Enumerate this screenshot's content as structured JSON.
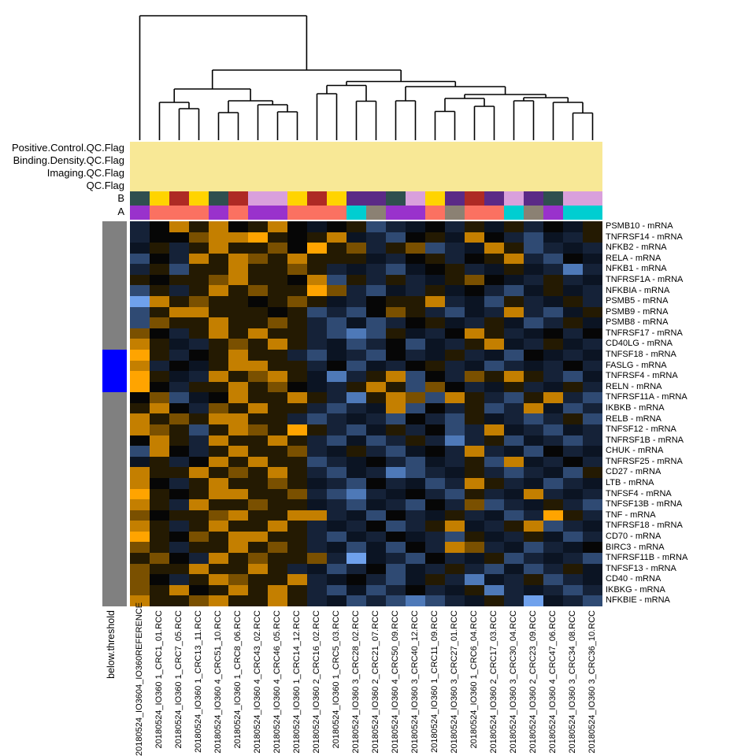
{
  "annotations": {
    "qc_flags": {
      "labels": [
        "Positive.Control.QC.Flag",
        "Binding.Density.QC.Flag",
        "Imaging.QC.Flag",
        "QC.Flag"
      ],
      "band_color": "#F8E896"
    },
    "track_b_label": "B",
    "track_a_label": "A",
    "row_bar": {
      "label": "below.threshold",
      "bar_color": "#808080",
      "highlight_color": "#0000FF",
      "below_threshold_genes": [
        "TNFSF18 - mRNA",
        "FASLG - mRNA",
        "TNFRSF4 - mRNA",
        "RELN - mRNA"
      ]
    }
  },
  "chart_data": {
    "type": "heatmap",
    "rows": [
      "PSMB10 - mRNA",
      "TNFRSF14 - mRNA",
      "NFKB2 - mRNA",
      "RELA - mRNA",
      "NFKB1 - mRNA",
      "TNFRSF1A - mRNA",
      "NFKBIA - mRNA",
      "PSMB5 - mRNA",
      "PSMB9 - mRNA",
      "PSMB8 - mRNA",
      "TNFRSF17 - mRNA",
      "CD40LG - mRNA",
      "TNFSF18 - mRNA",
      "FASLG - mRNA",
      "TNFRSF4 - mRNA",
      "RELN - mRNA",
      "TNFRSF11A - mRNA",
      "IKBKB - mRNA",
      "RELB - mRNA",
      "TNFSF12 - mRNA",
      "TNFRSF1B - mRNA",
      "CHUK - mRNA",
      "TNFRSF25 - mRNA",
      "CD27 - mRNA",
      "LTB - mRNA",
      "TNFSF4 - mRNA",
      "TNFSF13B - mRNA",
      "TNF - mRNA",
      "TNFRSF18 - mRNA",
      "CD70 - mRNA",
      "BIRC3 - mRNA",
      "TNFRSF11B - mRNA",
      "TNFSF13 - mRNA",
      "CD40 - mRNA",
      "IKBKG - mRNA",
      "NFKBIE - mRNA"
    ],
    "columns": [
      "20180524_IO3604_IO360REFERENCE",
      "20180524_IO360 1_CRC1_01.RCC",
      "20180524_IO360 1_CRC7_05.RCC",
      "20180524_IO360 1_CRC13_11.RCC",
      "20180524_IO360 4_CRC51_10.RCC",
      "20180524_IO360 1_CRC8_06.RCC",
      "20180524_IO360 4_CRC43_02.RCC",
      "20180524_IO360 4_CRC46_05.RCC",
      "20180524_IO360 1_CRC14_12.RCC",
      "20180524_IO360 2_CRC16_02.RCC",
      "20180524_IO360 1_CRC5_03.RCC",
      "20180524_IO360 3_CRC28_02.RCC",
      "20180524_IO360 2_CRC21_07.RCC",
      "20180524_IO360 4_CRC50_09.RCC",
      "20180524_IO360 3_CRC40_12.RCC",
      "20180524_IO360 1_CRC11_09.RCC",
      "20180524_IO360 3_CRC27_01.RCC",
      "20180524_IO360 1_CRC6_04.RCC",
      "20180524_IO360 2_CRC17_03.RCC",
      "20180524_IO360 3_CRC30_04.RCC",
      "20180524_IO360 2_CRC23_09.RCC",
      "20180524_IO360 4_CRC47_06.RCC",
      "20180524_IO360 3_CRC34_08.RCC",
      "20180524_IO360 3_CRC36_10.RCC"
    ],
    "cell_palette": {
      "O": "#FFA400",
      "o": "#C47F00",
      "w": "#7A5000",
      "k": "#241A02",
      "K": "#060606",
      "n": "#0B1423",
      "d": "#152238",
      "b": "#2F4A73",
      "B": "#4E79B8",
      "L": "#6FA1EC"
    },
    "cell_rows_encoded": [
      "dKokoKkoKnKkbdnKdknkdKnk",
      "dKKwooOkKkondbKknoKdbndk",
      "nkdkokkwKOkwdkwbdnokbdnd",
      "bKdokowkokkkndKkdKkodbKn",
      "dkbkkokkwkdndbnKkdnkndBd",
      "kKkkwokkKobkdkdnkwKndkdn",
      "bkdkokwkkOwdbndknKdbnknd",
      "LokwkkKkwkndKkkodnbkdnkd",
      "bkookkkKkbdbKwkdbndodbnk",
      "bwkkokkwkdbnbdKkndknbdkn",
      "wKdkokokkdbBbkndKokdnKdK",
      "okndkwkokdnbdKbndkondknd",
      "OkdKkokkdbndbKdnkdnbKndn",
      "odKnkookkdKbndKkdnbdndKd",
      "OkndokwoknBdkobKdwkokdbn",
      "OKdkkokwKndkokbwKdnkdnkd",
      "KwbnKokkokdBkowbokdbkodb",
      "koKdwkokkdbdnobKdkbdonbd",
      "okwkookkdbdndbKdbkndbdkb",
      "owkbkowkOkdbnkdKbdondbnd",
      "KokdokkokdbnbdkdBdkbndbd",
      "boKdkokkwdnkdbnKdodnbKdn",
      "nkdKokokkbdnKdbndkbondKd",
      "okkokwkokdbndBbdnkdbdnbk",
      "oKdkokkwkndbKdnbdokdnbdn",
      "OkKkookkwdbBdnKdbkdnodnd",
      "okdokkwkkndbndbKdwbdnkdb",
      "wKkkwokkoodnbKdnkdnbdOkd",
      "okdkokkokdndKbdkondkobdn",
      "OkKwkookkdbndKndbkndknbd",
      "wkdkkokwkdnbnbKdowdnbdnK",
      "kwKdokwkkwdLndbKdnkbdndb",
      "wkkokkokdnbdKbndkdbnbdkn",
      "wKdkowkkodnKdbnkdBndkbdn",
      "wkoKkokokdbnbdKdnkBdndbd",
      "okkwokkokdnbdbBbdnkdLndb"
    ],
    "track_palette": {
      "teal": "#2F4F4F",
      "yellow": "#FFD400",
      "darkred": "#AE2A24",
      "plum": "#D9A0DC",
      "darkpurple": "#5B2A86",
      "purple": "#9932CC",
      "salmon": "#FB7161",
      "cyan": "#00CED1",
      "gray": "#8B8173"
    },
    "col_annotation_B": [
      "teal",
      "yellow",
      "darkred",
      "yellow",
      "teal",
      "darkred",
      "plum",
      "plum",
      "yellow",
      "darkred",
      "yellow",
      "darkpurple",
      "darkpurple",
      "teal",
      "plum",
      "yellow",
      "darkpurple",
      "darkred",
      "darkpurple",
      "plum",
      "darkpurple",
      "teal",
      "plum",
      "plum"
    ],
    "col_annotation_A": [
      "purple",
      "salmon",
      "salmon",
      "salmon",
      "purple",
      "salmon",
      "purple",
      "purple",
      "salmon",
      "salmon",
      "salmon",
      "cyan",
      "gray",
      "purple",
      "purple",
      "salmon",
      "gray",
      "salmon",
      "salmon",
      "cyan",
      "gray",
      "purple",
      "cyan",
      "cyan"
    ],
    "row_annotation_below_threshold_indices": [
      12,
      13,
      14,
      15
    ],
    "dendrogram_links": [
      [
        227.5,
        178,
        252.5,
        178,
        138
      ],
      [
        202.5,
        178,
        240,
        138,
        130
      ],
      [
        277.5,
        178,
        302.5,
        178,
        143
      ],
      [
        352.5,
        178,
        377.5,
        178,
        142
      ],
      [
        327.5,
        178,
        365,
        142,
        133
      ],
      [
        290,
        143,
        346.25,
        133,
        128
      ],
      [
        221.25,
        130,
        318.1,
        128,
        113
      ],
      [
        402.5,
        178,
        427.5,
        178,
        119
      ],
      [
        452.5,
        178,
        477.5,
        178,
        128.5
      ],
      [
        415,
        119,
        465,
        128.5,
        108.5
      ],
      [
        502.5,
        178,
        527.5,
        178,
        128
      ],
      [
        552.5,
        178,
        577.5,
        178,
        141.5
      ],
      [
        602.5,
        178,
        627.5,
        178,
        135
      ],
      [
        565,
        141.5,
        615,
        135,
        125
      ],
      [
        652.5,
        178,
        677.5,
        178,
        128
      ],
      [
        727.5,
        178,
        752.5,
        178,
        143.5
      ],
      [
        702.5,
        178,
        740,
        143.5,
        130
      ],
      [
        665,
        128,
        721.25,
        130,
        124
      ],
      [
        590,
        125,
        693.1,
        124,
        120
      ],
      [
        515,
        128,
        641.6,
        120,
        110
      ],
      [
        440,
        108.5,
        578.3,
        110,
        103.5
      ],
      [
        269.7,
        113,
        509.2,
        103.5,
        89
      ],
      [
        177.5,
        178,
        389.4,
        89,
        20
      ]
    ],
    "legend_position": "none",
    "grid": false
  }
}
